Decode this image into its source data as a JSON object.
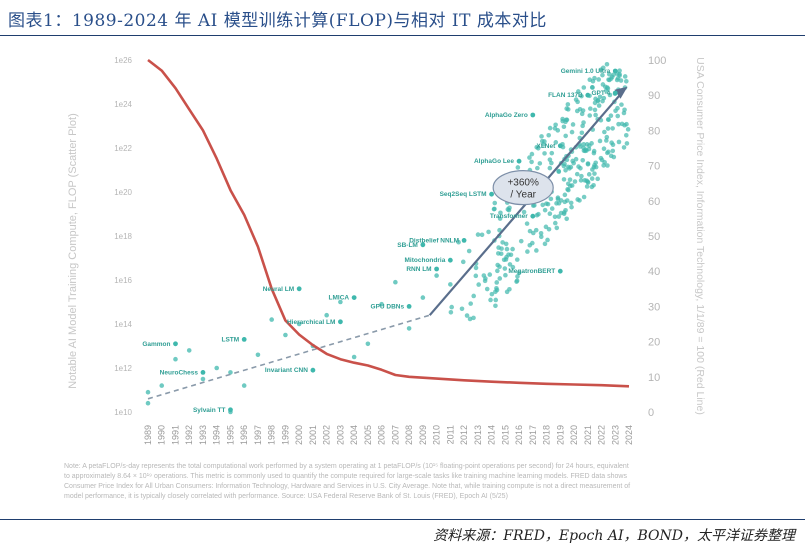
{
  "page": {
    "title": "图表1：1989-2024 年 AI 模型训练计算(FLOP)与相对 IT 成本对比",
    "footnote": "Note: A petaFLOP/s-day represents the total computational work performed by a system operating at 1 petaFLOP/s (10¹⁵ floating-point operations per second) for 24 hours, equivalent to approximately 8.64 × 10¹⁹ operations. This metric is commonly used to quantify the compute required for large-scale tasks like training machine learning models. FRED data shows Consumer Price Index for All Urban Consumers: Information Technology, Hardware and Services in U.S. City Average. Note that, while training compute is not a direct measurement of model performance, it is typically closely correlated with performance. Source: USA Federal Reserve Bank of St. Louis (FRED), Epoch AI (5/25)",
    "source": "资料来源：FRED，Epoch AI，BOND，太平洋证券整理"
  },
  "chart_data": {
    "type": "scatter",
    "ylabel_left": "Notable AI Model Training Compute, FLOP (Scatter Plot)",
    "ylabel_right": "USA Consumer Price Index, Information Technology, 1/1/89 = 100 (Red Line)",
    "yticks_left": [
      "1e10",
      "1e12",
      "1e14",
      "1e16",
      "1e18",
      "1e20",
      "1e22",
      "1e24",
      "1e26"
    ],
    "ylim_left_log10": [
      10,
      26
    ],
    "yticks_right": [
      0,
      10,
      20,
      30,
      40,
      50,
      60,
      70,
      80,
      90,
      100
    ],
    "ylim_right": [
      0,
      100
    ],
    "xlim": [
      1989,
      2024
    ],
    "xticks": [
      "1989",
      "1990",
      "1991",
      "1992",
      "1993",
      "1994",
      "1995",
      "1996",
      "1997",
      "1998",
      "1999",
      "2000",
      "2001",
      "2002",
      "2003",
      "2004",
      "2005",
      "2006",
      "2007",
      "2008",
      "2009",
      "2010",
      "2011",
      "2012",
      "2013",
      "2014",
      "2015",
      "2016",
      "2017",
      "2018",
      "2019",
      "2020",
      "2021",
      "2022",
      "2023",
      "2024"
    ],
    "grid": false,
    "colors": {
      "scatter": "#3fb8ad",
      "cpi_line": "#c9514a",
      "trend_dashed": "#8a9aaa",
      "arrow": "#5a6e8c",
      "label": "#2f9e94"
    },
    "cpi_series": {
      "name": "USA Consumer Price Index, Information Technology",
      "x": [
        1989,
        1990,
        1991,
        1992,
        1993,
        1994,
        1995,
        1996,
        1997,
        1998,
        1999,
        2000,
        2001,
        2002,
        2003,
        2004,
        2005,
        2006,
        2007,
        2008,
        2010,
        2012,
        2014,
        2016,
        2018,
        2020,
        2022,
        2024
      ],
      "y": [
        100,
        97,
        92,
        86,
        80,
        72,
        63,
        56,
        47,
        35,
        26,
        22,
        19,
        16.5,
        15,
        14,
        13.2,
        12,
        10.5,
        10,
        9.5,
        9,
        8.6,
        8.3,
        8,
        7.8,
        7.6,
        7.3
      ]
    },
    "trend_growth_label": [
      "+360%",
      "/ Year"
    ],
    "annotated_models": [
      {
        "name": "Gammon",
        "x": 1991,
        "logflop": 13.1
      },
      {
        "name": "NeuroChess",
        "x": 1993,
        "logflop": 11.8
      },
      {
        "name": "Sylvain TT",
        "x": 1995,
        "logflop": 10.1
      },
      {
        "name": "LSTM",
        "x": 1996,
        "logflop": 13.3
      },
      {
        "name": "Neural LM",
        "x": 2000,
        "logflop": 15.6
      },
      {
        "name": "Hierarchical LM",
        "x": 2003,
        "logflop": 14.1
      },
      {
        "name": "Invariant CNN",
        "x": 2001,
        "logflop": 11.9
      },
      {
        "name": "LMICA",
        "x": 2004,
        "logflop": 15.2
      },
      {
        "name": "GPU DBNs",
        "x": 2008,
        "logflop": 14.8
      },
      {
        "name": "RNN LM",
        "x": 2010,
        "logflop": 16.5
      },
      {
        "name": "SB-LM",
        "x": 2009,
        "logflop": 17.6
      },
      {
        "name": "Distbelief NNLM",
        "x": 2012,
        "logflop": 17.8
      },
      {
        "name": "Seq2Seq LSTM",
        "x": 2014,
        "logflop": 19.9
      },
      {
        "name": "AlphaGo Lee",
        "x": 2016,
        "logflop": 21.4
      },
      {
        "name": "AlphaGo Zero",
        "x": 2017,
        "logflop": 23.5
      },
      {
        "name": "XLNet",
        "x": 2019,
        "logflop": 22.1
      },
      {
        "name": "FLAN 137B",
        "x": 2021,
        "logflop": 24.4
      },
      {
        "name": "Gemini 1.0 Ultra",
        "x": 2023,
        "logflop": 25.5
      },
      {
        "name": "GPT-4",
        "x": 2023,
        "logflop": 24.5
      },
      {
        "name": "Transformer",
        "x": 2017,
        "logflop": 18.9
      },
      {
        "name": "MegatronBERT",
        "x": 2019,
        "logflop": 16.4
      },
      {
        "name": "Mitochondria",
        "x": 2011,
        "logflop": 16.9
      }
    ]
  }
}
